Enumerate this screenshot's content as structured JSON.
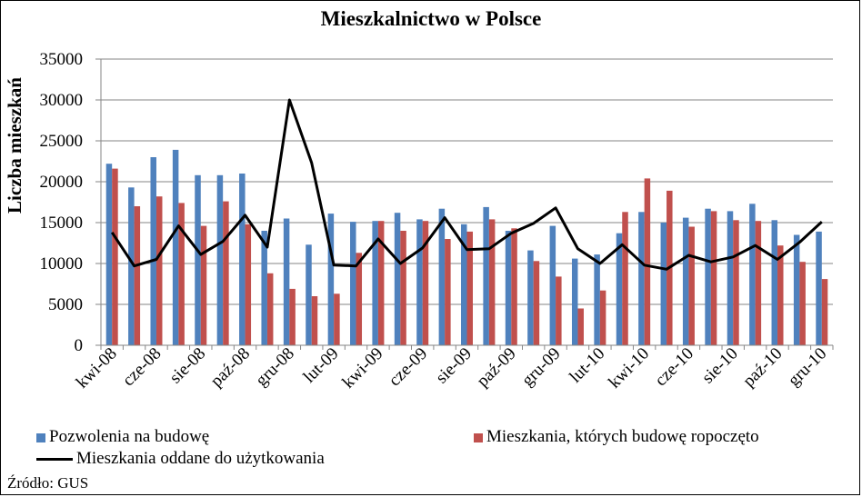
{
  "chart_data": {
    "type": "bar",
    "title": "Mieszkalnictwo w Polsce",
    "ylabel": "Liczba mieszkań",
    "xlabel": "",
    "ylim": [
      0,
      35000
    ],
    "yticks": [
      "0",
      "5000",
      "10000",
      "15000",
      "20000",
      "25000",
      "30000",
      "35000"
    ],
    "ytick_values": [
      0,
      5000,
      10000,
      15000,
      20000,
      25000,
      30000,
      35000
    ],
    "categories": [
      "kwi-08",
      "maj-08",
      "cze-08",
      "lip-08",
      "sie-08",
      "wrz-08",
      "paź-08",
      "lis-08",
      "gru-08",
      "sty-09",
      "lut-09",
      "mar-09",
      "kwi-09",
      "maj-09",
      "cze-09",
      "lip-09",
      "sie-09",
      "wrz-09",
      "paź-09",
      "lis-09",
      "gru-09",
      "sty-10",
      "lut-10",
      "mar-10",
      "kwi-10",
      "maj-10",
      "cze-10",
      "lip-10",
      "sie-10",
      "wrz-10",
      "paź-10",
      "lis-10",
      "gru-10"
    ],
    "tick_labels": [
      "kwi-08",
      "cze-08",
      "sie-08",
      "paź-08",
      "gru-08",
      "lut-09",
      "kwi-09",
      "cze-09",
      "sie-09",
      "paź-09",
      "gru-09",
      "lut-10",
      "kwi-10",
      "cze-10",
      "sie-10",
      "paź-10",
      "gru-10"
    ],
    "grid": true,
    "legend_position": "bottom",
    "series": [
      {
        "name": "Pozwolenia na budowę",
        "kind": "bar",
        "color": "#4F81BD",
        "values": [
          22200,
          19300,
          23000,
          23900,
          20800,
          20800,
          21000,
          14000,
          15500,
          12300,
          16100,
          15100,
          15200,
          16200,
          15400,
          16700,
          14800,
          16900,
          14000,
          11600,
          14600,
          10600,
          11100,
          13700,
          16300,
          15000,
          15600,
          16700,
          16400,
          17300,
          15300,
          13500,
          13900
        ]
      },
      {
        "name": "Mieszkania, których budowę ropoczęto",
        "kind": "bar",
        "color": "#C0504D",
        "values": [
          21600,
          17000,
          18200,
          17400,
          14600,
          17600,
          14800,
          8800,
          6900,
          6000,
          6300,
          11300,
          15200,
          14000,
          15200,
          13000,
          13900,
          15400,
          14300,
          10300,
          8400,
          4500,
          6700,
          16300,
          20400,
          18900,
          14500,
          16400,
          15300,
          15200,
          12200,
          10200,
          8100
        ]
      },
      {
        "name": "Mieszkania oddane do użytkowania",
        "kind": "line",
        "color": "#000000",
        "values": [
          13800,
          9700,
          10500,
          14600,
          11100,
          12700,
          15900,
          12000,
          30000,
          22300,
          9800,
          9700,
          13000,
          10000,
          11900,
          15600,
          11700,
          11800,
          13700,
          14900,
          16800,
          11800,
          10000,
          12300,
          9800,
          9300,
          11000,
          10200,
          10800,
          12200,
          10500,
          12600,
          15100
        ]
      }
    ]
  },
  "legend": {
    "bar1": "Pozwolenia na budowę",
    "bar2": "Mieszkania, których budowę ropoczęto",
    "line": "Mieszkania oddane do użytkowania"
  },
  "source": "Źródło: GUS"
}
